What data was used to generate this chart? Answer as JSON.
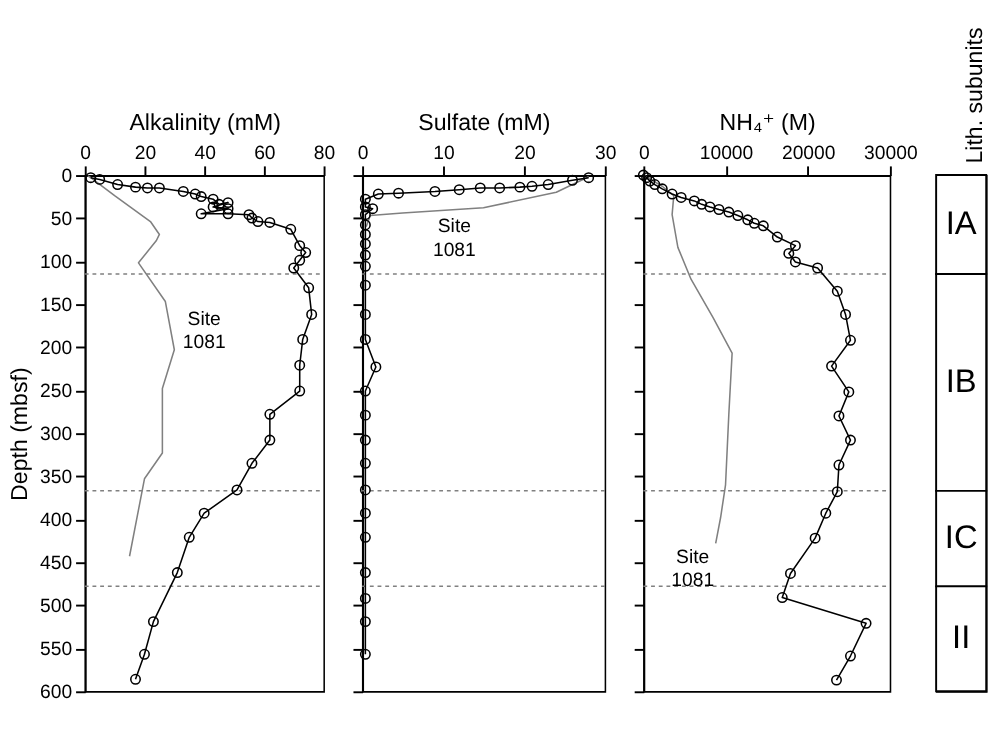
{
  "chart_data": [
    {
      "type": "line",
      "xlabel": "Alkalinity (mM)",
      "ylabel": "Depth (mbsf)",
      "xlim": [
        0,
        80
      ],
      "xticks": [
        0,
        20,
        40,
        60,
        80
      ],
      "ylim": [
        600,
        0
      ],
      "yticks": [
        0,
        50,
        100,
        150,
        200,
        250,
        300,
        350,
        400,
        450,
        500,
        550,
        600
      ],
      "grid": false,
      "ref_lines": [
        {
          "axis": "y",
          "value": 115,
          "color": "#808080",
          "line_style": "dotted"
        },
        {
          "axis": "y",
          "value": 367,
          "color": "#808080",
          "line_style": "dotted"
        },
        {
          "axis": "y",
          "value": 478,
          "color": "#808080",
          "line_style": "dotted"
        }
      ],
      "series": [
        {
          "color": "#808080",
          "marker": "none",
          "x": [
            1,
            2,
            10,
            22,
            25,
            24,
            18,
            27,
            30,
            26,
            26,
            20,
            15
          ],
          "values": [
            1,
            3,
            24,
            54,
            69,
            76,
            102,
            147,
            203,
            248,
            323,
            353,
            443
          ]
        },
        {
          "color": "#000000",
          "marker": "circle",
          "x": [
            2,
            5,
            11,
            17,
            21,
            25,
            33,
            37,
            39,
            43,
            45,
            48,
            43,
            48,
            39,
            48,
            55,
            56,
            58,
            62,
            69,
            72,
            74,
            72,
            70,
            75,
            76,
            73,
            72,
            72,
            62,
            62,
            56,
            51,
            40,
            35,
            31,
            23,
            20,
            17
          ],
          "values": [
            3,
            5,
            11,
            14,
            15,
            15,
            19,
            22,
            25,
            28,
            34,
            32,
            37,
            39,
            45,
            45,
            46,
            50,
            54,
            55,
            63,
            82,
            90,
            99,
            108,
            131,
            162,
            191,
            221,
            251,
            278,
            308,
            335,
            366,
            393,
            421,
            462,
            519,
            557,
            586
          ]
        }
      ],
      "annotations": [
        "Site\n1081"
      ]
    },
    {
      "type": "line",
      "xlabel": "Sulfate (mM)",
      "xlim": [
        0,
        30
      ],
      "xticks": [
        0,
        10,
        20,
        30
      ],
      "ylim": [
        600,
        0
      ],
      "yticks": [
        0,
        50,
        100,
        150,
        200,
        250,
        300,
        350,
        400,
        450,
        500,
        550,
        600
      ],
      "tick_labels": "x",
      "grid": false,
      "ref_lines": [
        {
          "axis": "y",
          "value": 115,
          "color": "#808080",
          "line_style": "dotted"
        },
        {
          "axis": "y",
          "value": 367,
          "color": "#808080",
          "line_style": "dotted"
        },
        {
          "axis": "y",
          "value": 478,
          "color": "#808080",
          "line_style": "dotted"
        }
      ],
      "series": [
        {
          "color": "#808080",
          "marker": "none",
          "x": [
            28,
            24,
            15,
            5,
            1,
            0.5
          ],
          "values": [
            2,
            20,
            38,
            44,
            47,
            60
          ]
        },
        {
          "color": "#000000",
          "marker": "circle",
          "x": [
            28,
            26,
            23,
            21,
            19.5,
            17,
            14.6,
            12,
            9,
            4.5,
            2,
            0.4,
            0.4,
            1.3,
            0.4,
            0.4,
            0.4,
            0.4,
            0.4,
            0.4,
            0.4,
            0.4,
            0.4,
            1.7,
            0.4,
            0.4,
            0.4,
            0.4,
            0.4,
            0.4,
            0.4,
            0.4,
            0.4,
            0.4,
            0.4
          ],
          "values": [
            3,
            6,
            11,
            13,
            14,
            15,
            15,
            17,
            19,
            21,
            22,
            28,
            37,
            39,
            46,
            58,
            69,
            80,
            93,
            106,
            128,
            162,
            191,
            223,
            251,
            279,
            308,
            335,
            366,
            393,
            421,
            462,
            492,
            519,
            557
          ]
        }
      ],
      "annotations": [
        "Site\n1081"
      ]
    },
    {
      "type": "line",
      "xlabel": "NH₄⁺ (M)",
      "xlim": [
        0,
        30000
      ],
      "xticks": [
        0,
        10000,
        20000,
        30000
      ],
      "ylim": [
        600,
        0
      ],
      "yticks": [
        0,
        50,
        100,
        150,
        200,
        250,
        300,
        350,
        400,
        450,
        500,
        550,
        600
      ],
      "tick_labels": "x",
      "grid": false,
      "ref_lines": [
        {
          "axis": "y",
          "value": 115,
          "color": "#808080",
          "line_style": "dotted"
        },
        {
          "axis": "y",
          "value": 367,
          "color": "#808080",
          "line_style": "dotted"
        },
        {
          "axis": "y",
          "value": 478,
          "color": "#808080",
          "line_style": "dotted"
        }
      ],
      "series": [
        {
          "color": "#808080",
          "marker": "none",
          "x": [
            0,
            2300,
            3700,
            3500,
            4200,
            5800,
            8500,
            10800,
            10400,
            10000,
            9400,
            8800
          ],
          "values": [
            0,
            13,
            24,
            46,
            84,
            121,
            166,
            207,
            278,
            360,
            398,
            428
          ]
        },
        {
          "color": "#000000",
          "marker": "circle",
          "x": [
            0,
            400,
            800,
            1400,
            2300,
            3500,
            4600,
            6200,
            7100,
            8100,
            9200,
            10400,
            11500,
            12700,
            13500,
            14600,
            16300,
            18500,
            17700,
            18500,
            21200,
            23600,
            24600,
            25200,
            22900,
            25000,
            23800,
            25200,
            23800,
            23600,
            22200,
            20900,
            17900,
            16900,
            27100,
            25200,
            23500
          ],
          "values": [
            0,
            3,
            7,
            11,
            16,
            22,
            26,
            30,
            34,
            37,
            40,
            43,
            47,
            52,
            56,
            59,
            72,
            82,
            91,
            101,
            108,
            135,
            162,
            192,
            222,
            252,
            280,
            308,
            337,
            368,
            393,
            422,
            463,
            491,
            521,
            559,
            587
          ]
        }
      ],
      "annotations": [
        "Site\n1081"
      ]
    },
    {
      "type": "bar",
      "title": "Lith. subunits",
      "stacked": true,
      "categories": [
        null
      ],
      "ylim": [
        600,
        0
      ],
      "tick_labels": false,
      "series": [
        {
          "name": "IA",
          "color": "#ffffff",
          "values": [
            115
          ]
        },
        {
          "name": "IB",
          "color": "#ffffff",
          "values": [
            252
          ]
        },
        {
          "name": "IC",
          "color": "#ffffff",
          "values": [
            111
          ]
        },
        {
          "name": "II",
          "color": "#ffffff",
          "values": [
            122
          ]
        }
      ]
    }
  ]
}
